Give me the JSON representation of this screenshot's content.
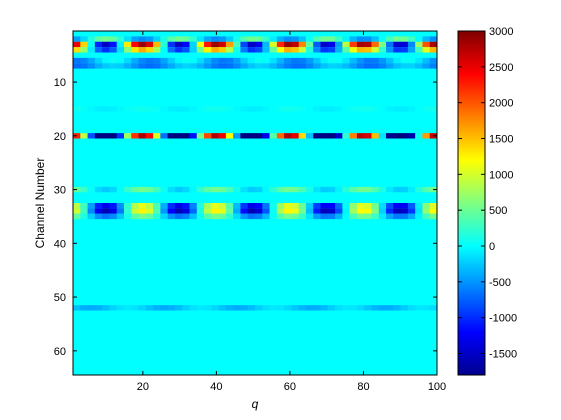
{
  "chart_data": {
    "type": "heatmap",
    "title": "",
    "xlabel": "q",
    "ylabel": "Channel Number",
    "xlim": [
      1,
      100
    ],
    "ylim": [
      64,
      1
    ],
    "y_direction": "reversed",
    "x_ticks": [
      20,
      40,
      60,
      80,
      100
    ],
    "y_ticks": [
      10,
      20,
      30,
      40,
      50,
      60
    ],
    "colormap": "jet",
    "color_range": [
      -1800,
      3000
    ],
    "colorbar_ticks": [
      3000,
      2500,
      2000,
      1500,
      1000,
      500,
      0,
      -500,
      -1000,
      -1500
    ],
    "background_value": 0,
    "period_q": 20,
    "rows": [
      {
        "channel": 2,
        "mean": 0,
        "amplitude": -550,
        "phase": 0
      },
      {
        "channel": 3,
        "mean": 700,
        "amplitude": 2200,
        "phase": 0
      },
      {
        "channel": 4,
        "mean": 300,
        "amplitude": 1300,
        "phase": 0
      },
      {
        "channel": 6,
        "mean": -300,
        "amplitude": 350,
        "phase": 0.4
      },
      {
        "channel": 7,
        "mean": -450,
        "amplitude": 250,
        "phase": 0.4
      },
      {
        "channel": 15,
        "mean": 0,
        "amplitude": 80,
        "phase": 0
      },
      {
        "channel": 20,
        "mean": 0,
        "amplitude": 2800,
        "phase": 0
      },
      {
        "channel": 30,
        "mean": 150,
        "amplitude": 400,
        "phase": 0
      },
      {
        "channel": 33,
        "mean": -100,
        "amplitude": 1200,
        "phase": 0
      },
      {
        "channel": 34,
        "mean": -150,
        "amplitude": 1400,
        "phase": 0
      },
      {
        "channel": 35,
        "mean": -50,
        "amplitude": 600,
        "phase": 0
      },
      {
        "channel": 52,
        "mean": -250,
        "amplitude": 150,
        "phase": 0.2
      }
    ]
  }
}
